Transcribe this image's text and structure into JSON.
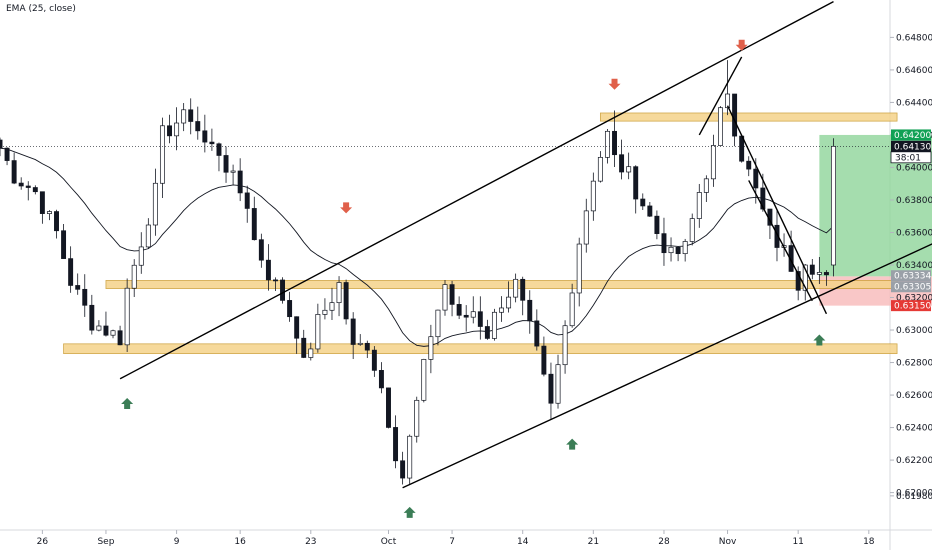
{
  "indicator": {
    "label": "EMA (25, close)"
  },
  "colors": {
    "candle": "#131722",
    "ema": "#131722",
    "zone_fill": "#f5d38a",
    "zone_stroke": "#c99a2e",
    "arrow_down": "#e0604a",
    "arrow_up": "#3b7d56",
    "tp_fill": "#8fd49a",
    "sl_fill": "#f7b9b9",
    "tag_green": "#11a155",
    "tag_red": "#e53935",
    "tag_dark": "#131722",
    "tag_gray": "#9aa0a8"
  },
  "chart_data": {
    "type": "candlestick",
    "title": "",
    "ylim": [
      0.6177,
      0.6503
    ],
    "xlim": [
      0,
      126
    ],
    "y_ticks": [
      "0.61980",
      "0.62000",
      "0.62200",
      "0.62400",
      "0.62600",
      "0.62800",
      "0.63000",
      "0.63200",
      "0.63400",
      "0.63600",
      "0.63800",
      "0.64000",
      "0.64200",
      "0.64400",
      "0.64600",
      "0.64800"
    ],
    "x_ticks": [
      {
        "x": 6,
        "label": "26"
      },
      {
        "x": 15,
        "label": "Sep"
      },
      {
        "x": 25,
        "label": "9"
      },
      {
        "x": 34,
        "label": "16"
      },
      {
        "x": 44,
        "label": "23"
      },
      {
        "x": 55,
        "label": "Oct"
      },
      {
        "x": 64,
        "label": "7"
      },
      {
        "x": 74,
        "label": "14"
      },
      {
        "x": 84,
        "label": "21"
      },
      {
        "x": 94,
        "label": "28"
      },
      {
        "x": 103,
        "label": "Nov"
      },
      {
        "x": 113,
        "label": "11"
      },
      {
        "x": 123,
        "label": "18"
      }
    ],
    "price_anchors": [
      [
        0,
        0.6412
      ],
      [
        2,
        0.6395
      ],
      [
        5,
        0.6385
      ],
      [
        8,
        0.636
      ],
      [
        10,
        0.633
      ],
      [
        13,
        0.6305
      ],
      [
        15,
        0.63
      ],
      [
        17,
        0.6295
      ],
      [
        18,
        0.6325
      ],
      [
        20,
        0.6355
      ],
      [
        22,
        0.6385
      ],
      [
        23,
        0.642
      ],
      [
        25,
        0.6428
      ],
      [
        27,
        0.6432
      ],
      [
        29,
        0.6415
      ],
      [
        31,
        0.641
      ],
      [
        33,
        0.6392
      ],
      [
        35,
        0.6378
      ],
      [
        36,
        0.6355
      ],
      [
        38,
        0.6335
      ],
      [
        40,
        0.632
      ],
      [
        42,
        0.63
      ],
      [
        43,
        0.6278
      ],
      [
        45,
        0.6305
      ],
      [
        47,
        0.632
      ],
      [
        48,
        0.6328
      ],
      [
        50,
        0.6288
      ],
      [
        52,
        0.6292
      ],
      [
        54,
        0.6265
      ],
      [
        56,
        0.6225
      ],
      [
        57,
        0.621
      ],
      [
        59,
        0.6255
      ],
      [
        61,
        0.6298
      ],
      [
        63,
        0.6328
      ],
      [
        65,
        0.6305
      ],
      [
        67,
        0.6312
      ],
      [
        69,
        0.6298
      ],
      [
        71,
        0.6318
      ],
      [
        73,
        0.6328
      ],
      [
        75,
        0.63
      ],
      [
        76,
        0.6285
      ],
      [
        78,
        0.6252
      ],
      [
        80,
        0.6302
      ],
      [
        82,
        0.6355
      ],
      [
        84,
        0.6395
      ],
      [
        86,
        0.642
      ],
      [
        87,
        0.6405
      ],
      [
        89,
        0.6395
      ],
      [
        91,
        0.6378
      ],
      [
        93,
        0.636
      ],
      [
        95,
        0.6345
      ],
      [
        97,
        0.635
      ],
      [
        99,
        0.6385
      ],
      [
        101,
        0.641
      ],
      [
        102,
        0.6432
      ],
      [
        103,
        0.6448
      ],
      [
        104,
        0.6425
      ],
      [
        105,
        0.6408
      ],
      [
        107,
        0.6385
      ],
      [
        109,
        0.636
      ],
      [
        111,
        0.6348
      ],
      [
        112,
        0.634
      ],
      [
        113,
        0.633
      ],
      [
        114,
        0.6345
      ],
      [
        115,
        0.634
      ],
      [
        116,
        0.6335
      ],
      [
        117,
        0.633
      ],
      [
        118,
        0.6413
      ]
    ],
    "candles_count": 119,
    "ema_period": 25,
    "last_close": 0.6413,
    "zones": [
      {
        "x0": 85,
        "x1": 127,
        "y0": 0.64285,
        "y1": 0.64335
      },
      {
        "x0": 15,
        "x1": 127,
        "y0": 0.63255,
        "y1": 0.63305
      },
      {
        "x0": 9,
        "x1": 127,
        "y0": 0.62855,
        "y1": 0.62915
      }
    ],
    "trend_lines": [
      {
        "x0": 17,
        "y0": 0.627,
        "x1": 118,
        "y1": 0.6502
      },
      {
        "x0": 57,
        "y0": 0.6203,
        "x1": 134,
        "y1": 0.6357
      },
      {
        "x0": 103,
        "y0": 0.6438,
        "x1": 117,
        "y1": 0.631
      },
      {
        "x0": 106,
        "y0": 0.6392,
        "x1": 115,
        "y1": 0.6318
      },
      {
        "x0": 99,
        "y0": 0.642,
        "x1": 105,
        "y1": 0.6468
      }
    ],
    "arrows": [
      {
        "dir": "down",
        "x": 49,
        "y": 0.6373
      },
      {
        "dir": "down",
        "x": 87,
        "y": 0.6449
      },
      {
        "dir": "down",
        "x": 105,
        "y": 0.6473
      },
      {
        "dir": "up",
        "x": 18,
        "y": 0.6257
      },
      {
        "dir": "up",
        "x": 58,
        "y": 0.619
      },
      {
        "dir": "up",
        "x": 81,
        "y": 0.6232
      },
      {
        "dir": "up",
        "x": 116,
        "y": 0.6296
      }
    ],
    "position": {
      "x0": 116,
      "x1": 132,
      "entry": 0.6333,
      "target": 0.642,
      "stop": 0.6315
    },
    "last_price_line": 0.6413,
    "price_tags": [
      {
        "value": 0.642,
        "text": "0.64200",
        "color": "green"
      },
      {
        "value": 0.6413,
        "text": "0.64130",
        "color": "dark"
      },
      {
        "value": 0.64105,
        "text": "38:01",
        "color": "dark_outline"
      },
      {
        "value": 0.63334,
        "text": "0.63334",
        "color": "gray"
      },
      {
        "value": 0.63305,
        "text": "0.63305",
        "color": "gray"
      },
      {
        "value": 0.6315,
        "text": "0.63150",
        "color": "red"
      }
    ]
  }
}
